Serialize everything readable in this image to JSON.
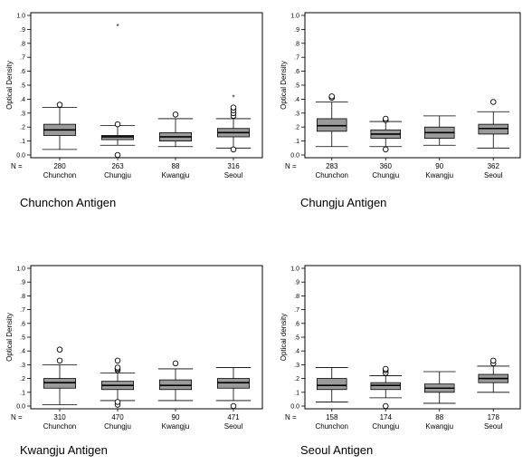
{
  "n_prefix": "N =",
  "chart_data": [
    {
      "type": "box",
      "caption": "Chunchon Antigen",
      "ylabel": "Optical Density",
      "ylim": [
        0.0,
        1.0
      ],
      "yticks": [
        "0.0",
        ".1",
        ".2",
        ".3",
        ".4",
        ".5",
        ".6",
        ".7",
        ".8",
        ".9",
        "1.0"
      ],
      "categories": [
        "Chunchon",
        "Chungju",
        "Kwangju",
        "Seoul"
      ],
      "n": [
        "280",
        "263",
        "88",
        "316"
      ],
      "boxes": [
        {
          "whisker_low": 0.04,
          "q1": 0.14,
          "median": 0.18,
          "q3": 0.22,
          "whisker_high": 0.34,
          "outliers": [
            0.36
          ],
          "extremes": []
        },
        {
          "whisker_low": 0.07,
          "q1": 0.11,
          "median": 0.13,
          "q3": 0.14,
          "whisker_high": 0.21,
          "outliers": [
            0.22,
            0.0
          ],
          "extremes": [
            0.93
          ]
        },
        {
          "whisker_low": 0.06,
          "q1": 0.1,
          "median": 0.13,
          "q3": 0.16,
          "whisker_high": 0.26,
          "outliers": [
            0.29
          ],
          "extremes": []
        },
        {
          "whisker_low": 0.05,
          "q1": 0.13,
          "median": 0.16,
          "q3": 0.19,
          "whisker_high": 0.26,
          "outliers": [
            0.28,
            0.3,
            0.32,
            0.34,
            0.04
          ],
          "extremes": [
            0.42
          ]
        }
      ]
    },
    {
      "type": "box",
      "caption": "Chungju Antigen",
      "ylabel": "Optical Density",
      "ylim": [
        0.0,
        1.0
      ],
      "yticks": [
        "0.0",
        ".1",
        ".2",
        ".3",
        ".4",
        ".5",
        ".6",
        ".7",
        ".8",
        ".9",
        "1.0"
      ],
      "categories": [
        "Chunchon",
        "Chungju",
        "Kwangju",
        "Seoul"
      ],
      "n": [
        "283",
        "360",
        "90",
        "362"
      ],
      "boxes": [
        {
          "whisker_low": 0.06,
          "q1": 0.17,
          "median": 0.21,
          "q3": 0.26,
          "whisker_high": 0.38,
          "outliers": [
            0.41,
            0.42
          ],
          "extremes": []
        },
        {
          "whisker_low": 0.06,
          "q1": 0.12,
          "median": 0.15,
          "q3": 0.18,
          "whisker_high": 0.24,
          "outliers": [
            0.25,
            0.26,
            0.04
          ],
          "extremes": []
        },
        {
          "whisker_low": 0.07,
          "q1": 0.12,
          "median": 0.16,
          "q3": 0.2,
          "whisker_high": 0.28,
          "outliers": [],
          "extremes": []
        },
        {
          "whisker_low": 0.05,
          "q1": 0.15,
          "median": 0.19,
          "q3": 0.22,
          "whisker_high": 0.31,
          "outliers": [
            0.38
          ],
          "extremes": []
        }
      ]
    },
    {
      "type": "box",
      "caption": "Kwangju Antigen",
      "ylabel": "Optical Density",
      "ylim": [
        0.0,
        1.0
      ],
      "yticks": [
        "0.0",
        ".1",
        ".2",
        ".3",
        ".4",
        ".5",
        ".6",
        ".7",
        ".8",
        ".9",
        "1.0"
      ],
      "categories": [
        "Chunchon",
        "Chungju",
        "Kwangju",
        "Seoul"
      ],
      "n": [
        "310",
        "470",
        "90",
        "471"
      ],
      "boxes": [
        {
          "whisker_low": 0.01,
          "q1": 0.13,
          "median": 0.17,
          "q3": 0.2,
          "whisker_high": 0.3,
          "outliers": [
            0.33,
            0.41
          ],
          "extremes": []
        },
        {
          "whisker_low": 0.04,
          "q1": 0.12,
          "median": 0.15,
          "q3": 0.18,
          "whisker_high": 0.24,
          "outliers": [
            0.26,
            0.27,
            0.28,
            0.33,
            0.01,
            0.03
          ],
          "extremes": []
        },
        {
          "whisker_low": 0.04,
          "q1": 0.12,
          "median": 0.15,
          "q3": 0.19,
          "whisker_high": 0.27,
          "outliers": [
            0.31
          ],
          "extremes": []
        },
        {
          "whisker_low": 0.04,
          "q1": 0.13,
          "median": 0.17,
          "q3": 0.2,
          "whisker_high": 0.28,
          "outliers": [
            0.0
          ],
          "extremes": []
        }
      ]
    },
    {
      "type": "box",
      "caption": "Seoul Antigen",
      "ylabel": "Optical density",
      "ylim": [
        0.0,
        1.0
      ],
      "yticks": [
        "0.0",
        ".1",
        ".2",
        ".3",
        ".4",
        ".5",
        ".6",
        ".7",
        ".8",
        ".9",
        "1.0"
      ],
      "categories": [
        "Chunchon",
        "Chungju",
        "Kwangju",
        "Seoul"
      ],
      "n": [
        "158",
        "174",
        "88",
        "178"
      ],
      "boxes": [
        {
          "whisker_low": 0.03,
          "q1": 0.12,
          "median": 0.15,
          "q3": 0.2,
          "whisker_high": 0.28,
          "outliers": [],
          "extremes": []
        },
        {
          "whisker_low": 0.06,
          "q1": 0.12,
          "median": 0.15,
          "q3": 0.17,
          "whisker_high": 0.22,
          "outliers": [
            0.24,
            0.26,
            0.27,
            0.0
          ],
          "extremes": []
        },
        {
          "whisker_low": 0.02,
          "q1": 0.1,
          "median": 0.13,
          "q3": 0.16,
          "whisker_high": 0.25,
          "outliers": [],
          "extremes": []
        },
        {
          "whisker_low": 0.1,
          "q1": 0.17,
          "median": 0.2,
          "q3": 0.23,
          "whisker_high": 0.29,
          "outliers": [
            0.31,
            0.33
          ],
          "extremes": []
        }
      ]
    }
  ]
}
